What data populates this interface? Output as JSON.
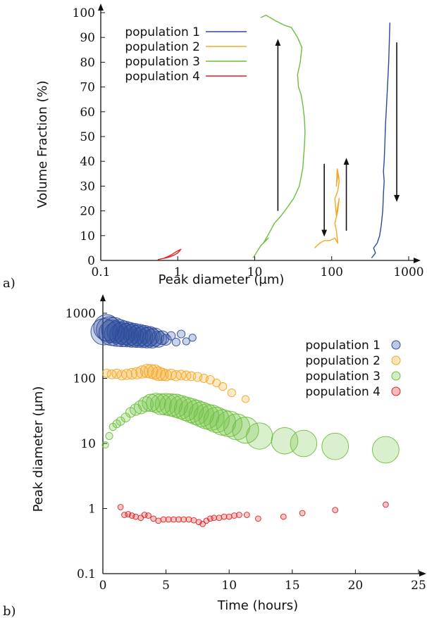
{
  "colors": {
    "population_1": "#2b4a9a",
    "population_2": "#f5a623",
    "population_3": "#6cbf3a",
    "population_4": "#e02020",
    "axis": "#111111",
    "arrow": "#111111"
  },
  "chart_data": [
    {
      "type": "line",
      "panel_label": "a)",
      "xlabel": "Peak diameter (µm)",
      "ylabel": "Volume Fraction (%)",
      "xscale": "log",
      "xlim": [
        0.1,
        1000
      ],
      "ylim": [
        0,
        100
      ],
      "xticks": [
        0.1,
        1,
        10,
        100,
        1000
      ],
      "xtick_labels": [
        "0.1",
        "1",
        "10",
        "100",
        "1000"
      ],
      "yticks": [
        0,
        10,
        20,
        30,
        40,
        50,
        60,
        70,
        80,
        90,
        100
      ],
      "ytick_labels": [
        "0",
        "10",
        "20",
        "30",
        "40",
        "50",
        "60",
        "70",
        "80",
        "90",
        "100"
      ],
      "legend_position": "top-left",
      "series": [
        {
          "name": "population 1",
          "x": [
            330,
            370,
            350,
            390,
            420,
            440,
            460,
            470,
            480,
            470,
            480,
            490,
            500,
            510,
            520,
            530,
            540,
            550,
            560,
            570
          ],
          "y": [
            1,
            3,
            5,
            7,
            10,
            14,
            20,
            27,
            32,
            36,
            40,
            47,
            55,
            60,
            65,
            70,
            75,
            80,
            88,
            96
          ]
        },
        {
          "name": "population 2",
          "x": [
            60,
            70,
            80,
            95,
            110,
            120,
            115,
            110,
            120,
            125,
            120,
            115,
            110,
            120,
            125,
            120,
            115,
            118,
            125
          ],
          "y": [
            5,
            7,
            8,
            8,
            9,
            7,
            12,
            15,
            20,
            25,
            22,
            18,
            25,
            28,
            32,
            35,
            30,
            37,
            33
          ]
        },
        {
          "name": "population 3",
          "x": [
            9.5,
            12,
            15,
            13,
            16,
            18,
            22,
            26,
            32,
            38,
            42,
            44,
            45,
            44,
            42,
            40,
            37,
            36,
            39,
            41,
            36,
            30,
            24,
            18,
            14,
            12
          ],
          "y": [
            1,
            6,
            9,
            7,
            12,
            15,
            18,
            21,
            25,
            30,
            37,
            45,
            52,
            58,
            63,
            67,
            70,
            75,
            80,
            86,
            90,
            94,
            95,
            97,
            99,
            98
          ]
        },
        {
          "name": "population 4",
          "x": [
            0.55,
            0.6,
            0.7,
            0.8,
            0.9,
            1.0,
            1.1,
            0.95,
            0.85,
            0.75,
            0.65
          ],
          "y": [
            0.3,
            0.6,
            1,
            1.5,
            2.2,
            3,
            4.5,
            3.5,
            2.5,
            1.6,
            0.8
          ]
        }
      ],
      "annotations": [
        {
          "type": "arrow",
          "x": 20,
          "y_from": 20,
          "y_to": 88,
          "direction": "up"
        },
        {
          "type": "arrow",
          "x": 80,
          "y_from": 39,
          "y_to": 11,
          "direction": "down"
        },
        {
          "type": "arrow",
          "x": 155,
          "y_from": 12,
          "y_to": 40,
          "direction": "up"
        },
        {
          "type": "arrow",
          "x": 700,
          "y_from": 88,
          "y_to": 25,
          "direction": "down"
        }
      ]
    },
    {
      "type": "scatter",
      "panel_label": "b)",
      "xlabel": "Time (hours)",
      "ylabel": "Peak diameter (µm)",
      "yscale": "log",
      "xlim": [
        0,
        25
      ],
      "ylim": [
        0.1,
        1000
      ],
      "xticks": [
        0,
        5,
        10,
        15,
        20,
        25
      ],
      "xtick_labels": [
        "0",
        "5",
        "10",
        "15",
        "20",
        "25"
      ],
      "yticks": [
        0.1,
        1,
        10,
        100,
        1000
      ],
      "ytick_labels": [
        "0.1",
        "1",
        "10",
        "100",
        "1000"
      ],
      "legend_position": "top-right",
      "bubble_size_meaning": "volume fraction (%)",
      "series": [
        {
          "name": "population 1",
          "time": [
            0.1,
            0.3,
            0.5,
            0.7,
            0.9,
            1.1,
            1.3,
            1.5,
            1.7,
            1.9,
            2.1,
            2.3,
            2.5,
            2.7,
            2.9,
            3.1,
            3.3,
            3.5,
            3.7,
            3.9,
            4.1,
            4.4,
            4.7,
            5.0,
            5.4,
            5.8,
            6.2,
            6.6,
            7.1
          ],
          "peak": [
            520,
            600,
            560,
            500,
            550,
            480,
            520,
            470,
            500,
            460,
            480,
            450,
            470,
            440,
            460,
            430,
            450,
            420,
            440,
            410,
            430,
            400,
            420,
            390,
            450,
            360,
            480,
            370,
            420
          ],
          "volume": [
            95,
            92,
            90,
            88,
            85,
            82,
            80,
            78,
            75,
            72,
            70,
            68,
            65,
            62,
            60,
            58,
            55,
            52,
            48,
            45,
            40,
            30,
            20,
            10,
            5,
            4,
            4,
            3,
            3
          ]
        },
        {
          "name": "population 2",
          "time": [
            0.3,
            0.7,
            1.1,
            1.5,
            1.9,
            2.3,
            2.7,
            3.1,
            3.5,
            3.8,
            4.1,
            4.4,
            4.7,
            5.0,
            5.4,
            5.8,
            6.2,
            6.6,
            7.0,
            7.5,
            8.0,
            8.5,
            9.0,
            9.5,
            10.2,
            11.3
          ],
          "peak": [
            120,
            115,
            118,
            112,
            115,
            118,
            120,
            125,
            130,
            128,
            125,
            118,
            115,
            112,
            115,
            110,
            112,
            110,
            108,
            105,
            100,
            95,
            85,
            75,
            60,
            48
          ],
          "volume": [
            5,
            6,
            7,
            8,
            9,
            10,
            12,
            15,
            18,
            20,
            22,
            20,
            15,
            12,
            10,
            9,
            8,
            7,
            6,
            6,
            5,
            5,
            4,
            4,
            4,
            3
          ]
        },
        {
          "name": "population 3",
          "time": [
            0.2,
            0.5,
            0.8,
            1.1,
            1.4,
            1.8,
            2.2,
            2.6,
            3.0,
            3.4,
            3.8,
            4.2,
            4.6,
            5.0,
            5.4,
            5.8,
            6.2,
            6.6,
            7.0,
            7.4,
            7.8,
            8.2,
            8.6,
            9.0,
            9.5,
            10.0,
            10.6,
            11.3,
            12.4,
            14.4,
            15.9,
            18.4,
            22.4
          ],
          "peak": [
            9.5,
            13,
            18,
            20,
            22,
            25,
            30,
            33,
            36,
            40,
            42,
            42,
            40,
            40,
            39,
            38,
            36,
            34,
            32,
            30,
            28,
            26,
            25,
            23,
            21,
            20,
            18,
            16,
            13,
            11,
            10,
            9,
            8
          ],
          "volume": [
            2,
            3,
            3,
            4,
            5,
            6,
            8,
            12,
            18,
            25,
            35,
            45,
            55,
            60,
            65,
            70,
            72,
            75,
            78,
            80,
            82,
            84,
            86,
            88,
            89,
            90,
            92,
            93,
            94,
            95,
            95,
            96,
            97
          ]
        },
        {
          "name": "population 4",
          "time": [
            1.4,
            1.7,
            2.0,
            2.3,
            2.6,
            3.0,
            3.3,
            3.6,
            4.0,
            4.4,
            4.8,
            5.2,
            5.6,
            6.0,
            6.4,
            6.8,
            7.2,
            7.6,
            7.9,
            8.2,
            8.5,
            8.8,
            9.2,
            9.6,
            10.0,
            10.4,
            10.8,
            11.4,
            12.3,
            14.3,
            15.8,
            18.4,
            22.4
          ],
          "peak": [
            1.05,
            0.8,
            0.82,
            0.78,
            0.75,
            0.72,
            0.8,
            0.78,
            0.7,
            0.65,
            0.68,
            0.68,
            0.68,
            0.68,
            0.68,
            0.68,
            0.66,
            0.62,
            0.58,
            0.65,
            0.7,
            0.72,
            0.72,
            0.75,
            0.75,
            0.78,
            0.8,
            0.8,
            0.7,
            0.75,
            0.85,
            0.95,
            1.15
          ],
          "volume": [
            1,
            1,
            1,
            1,
            1,
            1,
            1,
            1,
            1,
            1,
            1,
            1,
            1,
            1,
            1,
            1,
            1,
            1,
            1,
            1,
            1,
            1,
            1,
            1,
            1,
            1,
            1,
            1,
            1,
            1,
            1,
            1,
            1
          ]
        }
      ]
    }
  ]
}
